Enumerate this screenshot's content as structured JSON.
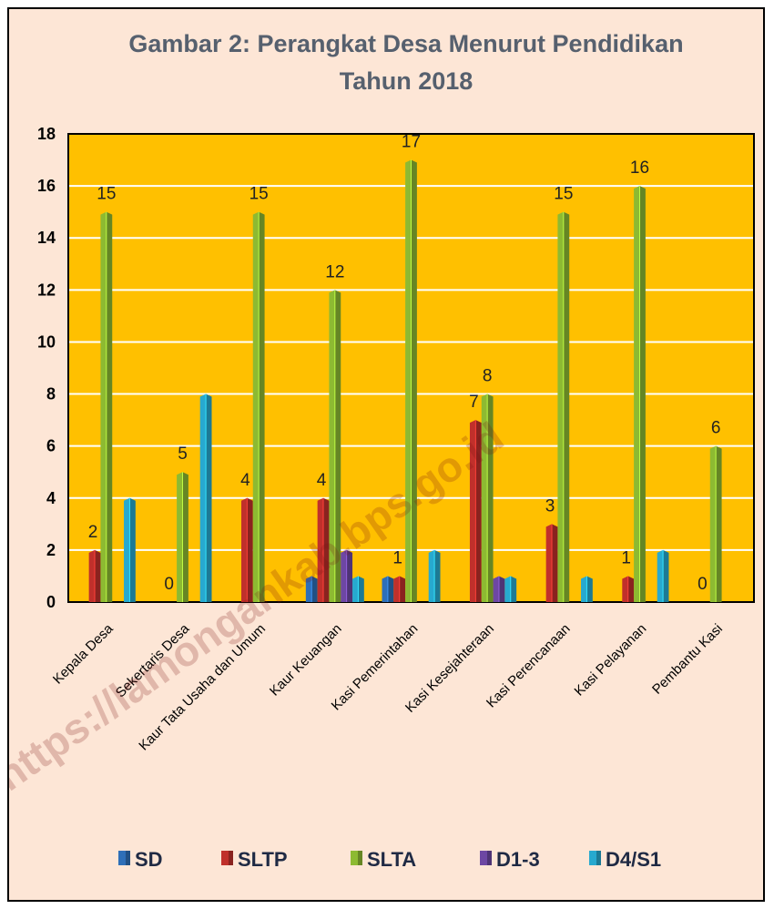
{
  "chart_data": {
    "type": "bar",
    "title_line1": "Gambar 2: Perangkat Desa Menurut Pendidikan",
    "title_line2": "Tahun 2018",
    "categories": [
      "Kepala Desa",
      "Sekertaris Desa",
      "Kaur Tata Usaha dan Umum",
      "Kaur Keuangan",
      "Kasi Pemerintahan",
      "Kasi Kesejahteraan",
      "Kasi  Perencanaan",
      "Kasi Pelayanan",
      "Pembantu Kasi"
    ],
    "series": [
      {
        "name": "SD",
        "color": "#2e6fb8",
        "values": [
          0,
          0,
          0,
          1,
          1,
          0,
          0,
          0,
          0
        ]
      },
      {
        "name": "SLTP",
        "color": "#c0302b",
        "values": [
          2,
          0,
          4,
          4,
          1,
          7,
          3,
          1,
          0
        ]
      },
      {
        "name": "SLTA",
        "color": "#8dba32",
        "values": [
          15,
          5,
          15,
          12,
          17,
          8,
          15,
          16,
          6
        ]
      },
      {
        "name": "D1-3",
        "color": "#6d47a3",
        "values": [
          0,
          0,
          0,
          2,
          0,
          1,
          0,
          0,
          0
        ]
      },
      {
        "name": "D4/S1",
        "color": "#27a9cf",
        "values": [
          4,
          8,
          0,
          1,
          2,
          1,
          1,
          2,
          0
        ]
      }
    ],
    "data_labels": [
      {
        "category": 0,
        "series": "SLTP",
        "text": "2"
      },
      {
        "category": 0,
        "series": "SLTA",
        "text": "15"
      },
      {
        "category": 1,
        "series": "SLTP",
        "text": "0"
      },
      {
        "category": 1,
        "series": "SLTA",
        "text": "5"
      },
      {
        "category": 2,
        "series": "SLTP",
        "text": "4"
      },
      {
        "category": 2,
        "series": "SLTA",
        "text": "15"
      },
      {
        "category": 3,
        "series": "SLTP",
        "text": "4"
      },
      {
        "category": 3,
        "series": "SLTA",
        "text": "12"
      },
      {
        "category": 4,
        "series": "SLTP",
        "text": "1"
      },
      {
        "category": 4,
        "series": "SLTA",
        "text": "17"
      },
      {
        "category": 5,
        "series": "SLTP",
        "text": "7"
      },
      {
        "category": 5,
        "series": "SLTA",
        "text": "8"
      },
      {
        "category": 6,
        "series": "SLTP",
        "text": "3"
      },
      {
        "category": 6,
        "series": "SLTA",
        "text": "15"
      },
      {
        "category": 7,
        "series": "SLTP",
        "text": "1"
      },
      {
        "category": 7,
        "series": "SLTA",
        "text": "16"
      },
      {
        "category": 8,
        "series": "SLTP",
        "text": "0"
      },
      {
        "category": 8,
        "series": "SLTA",
        "text": "6"
      }
    ],
    "ylim": [
      0,
      18
    ],
    "yticks": [
      0,
      2,
      4,
      6,
      8,
      10,
      12,
      14,
      16,
      18
    ],
    "grid": true,
    "legend_position": "bottom",
    "plot_background": "#ffc000",
    "watermark": "https://lamongankab.bps.go.id"
  }
}
